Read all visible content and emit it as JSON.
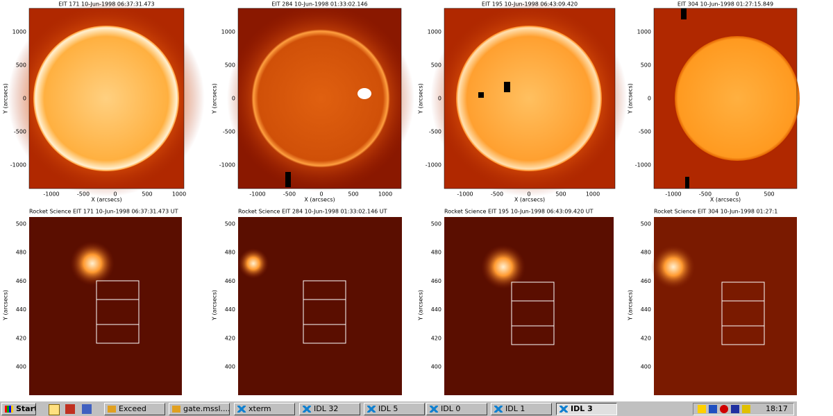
{
  "top_panels": [
    {
      "title": "EIT 171 10-Jun-1998 06:37:31.473",
      "xlabel": "X (arcsecs)",
      "ylabel": "Y (arcsecs)",
      "xticks": [
        -1000,
        -500,
        0,
        500,
        1000
      ],
      "yticks": [
        1000,
        500,
        0,
        -500,
        -1000
      ]
    },
    {
      "title": "EIT 284 10-Jun-1998 01:33:02.146",
      "xlabel": "X (arcsecs)",
      "ylabel": "Y (arcsecs)",
      "xticks": [
        -1000,
        -500,
        0,
        500,
        1000
      ],
      "yticks": [
        1000,
        500,
        0,
        -500,
        -1000
      ]
    },
    {
      "title": "EIT 195 10-Jun-1998 06:43:09.420",
      "xlabel": "X (arcsecs)",
      "ylabel": "Y (arcsecs)",
      "xticks": [
        -1000,
        -500,
        0,
        500,
        1000
      ],
      "yticks": [
        1000,
        500,
        0,
        -500,
        -1000
      ]
    },
    {
      "title": "EIT 304 10-Jun-1998 01:27:15.849",
      "xlabel": "X (arcsecs)",
      "ylabel": "Y (arcsecs)",
      "xticks": [
        -1000,
        -500,
        0,
        500
      ],
      "yticks": [
        1000,
        500,
        0,
        -500,
        -1000
      ]
    }
  ],
  "bottom_panels": [
    {
      "title": "Rocket Science EIT 171 10-Jun-1998 06:37:31.473 UT",
      "ylabel": "Y (arcsecs)",
      "yticks": [
        500,
        480,
        460,
        440,
        420,
        400
      ]
    },
    {
      "title": "Rocket Science EIT 284 10-Jun-1998 01:33:02.146 UT",
      "ylabel": "Y (arcsecs)",
      "yticks": [
        500,
        480,
        460,
        440,
        420,
        400
      ]
    },
    {
      "title": "Rocket Science EIT 195 10-Jun-1998 06:43:09.420 UT",
      "ylabel": "Y (arcsecs)",
      "yticks": [
        500,
        480,
        460,
        440,
        420,
        400
      ]
    },
    {
      "title": "Rocket Science EIT 304 10-Jun-1998 01:27:1",
      "ylabel": "Y (arcsecs)",
      "yticks": [
        500,
        480,
        460,
        440,
        420,
        400
      ]
    }
  ],
  "taskbar": {
    "start": "Start",
    "buttons": [
      "Exceed",
      "gate.mssl....",
      "xterm",
      "IDL 32",
      "IDL 5",
      "IDL 0",
      "IDL 1",
      "IDL 3"
    ],
    "clock": "18:17"
  }
}
